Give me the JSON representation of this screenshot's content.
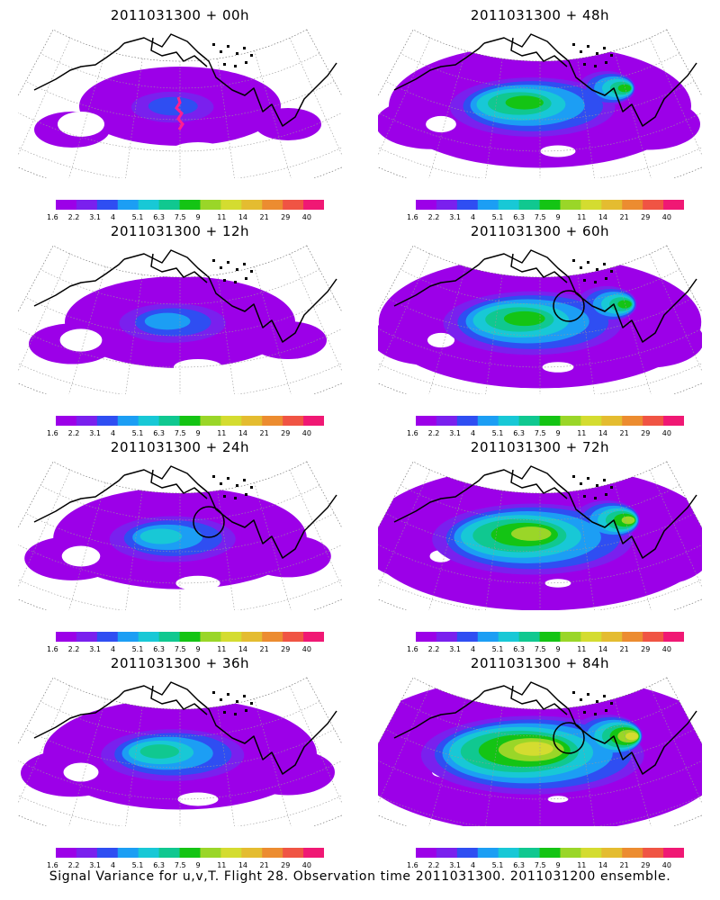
{
  "panels": [
    {
      "title": "2011031300 + 00h",
      "forecast_hour": 0,
      "circle": false,
      "intensity": 0.2,
      "flight_track": true
    },
    {
      "title": "2011031300 + 48h",
      "forecast_hour": 48,
      "circle": false,
      "intensity": 0.55,
      "flight_track": false
    },
    {
      "title": "2011031300 + 12h",
      "forecast_hour": 12,
      "circle": false,
      "intensity": 0.3,
      "flight_track": false
    },
    {
      "title": "2011031300 + 60h",
      "forecast_hour": 60,
      "circle": true,
      "intensity": 0.62,
      "flight_track": false
    },
    {
      "title": "2011031300 + 24h",
      "forecast_hour": 24,
      "circle": true,
      "intensity": 0.38,
      "flight_track": false
    },
    {
      "title": "2011031300 + 72h",
      "forecast_hour": 72,
      "circle": false,
      "intensity": 0.72,
      "flight_track": false
    },
    {
      "title": "2011031300 + 36h",
      "forecast_hour": 36,
      "circle": false,
      "intensity": 0.45,
      "flight_track": false
    },
    {
      "title": "2011031300 + 84h",
      "forecast_hour": 84,
      "circle": true,
      "intensity": 0.82,
      "flight_track": false
    }
  ],
  "colorbar": {
    "labels": [
      "1.6",
      "2.2",
      "3.1",
      "4",
      "5.1",
      "6.3",
      "7.5",
      "9",
      "11",
      "14",
      "21",
      "29",
      "40"
    ],
    "colors": [
      "#9c00e8",
      "#7a20ee",
      "#2f4ef2",
      "#1c9ef4",
      "#18c8d6",
      "#10c890",
      "#14c414",
      "#9ad628",
      "#d4dc30",
      "#e4bc30",
      "#ec8c30",
      "#f05444",
      "#f01874"
    ]
  },
  "map_colors": {
    "below_threshold": "#ffffff",
    "coastline": "#000000",
    "flight_track": "#ff1f8f",
    "grid": "#999999"
  },
  "footer": "Signal Variance for u,v,T. Flight 28. Observation time 2011031300. 2011031200 ensemble."
}
